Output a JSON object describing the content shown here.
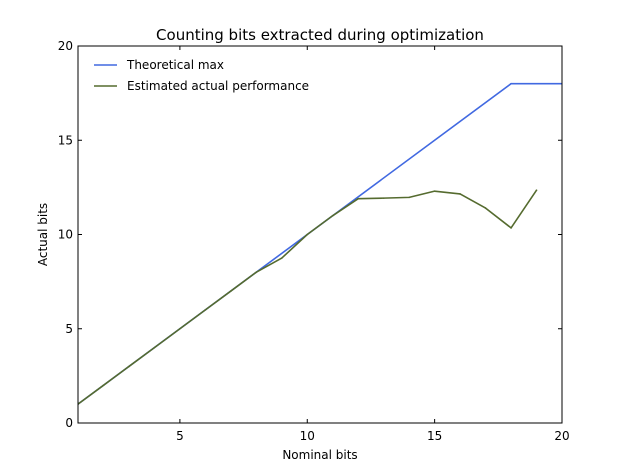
{
  "chart_data": {
    "type": "line",
    "title": "Counting bits extracted during optimization",
    "xlabel": "Nominal bits",
    "ylabel": "Actual bits",
    "xlim": [
      1,
      20
    ],
    "ylim": [
      0,
      20
    ],
    "x_ticks": [
      5,
      10,
      15,
      20
    ],
    "x_tick_labels": [
      "5",
      "10",
      "15",
      "20"
    ],
    "y_ticks": [
      0,
      5,
      10,
      15,
      20
    ],
    "y_tick_labels": [
      "0",
      "5",
      "10",
      "15",
      "20"
    ],
    "grid": false,
    "legend_position": "top-left",
    "series": [
      {
        "name": "Theoretical max",
        "color": "#4169e1",
        "x": [
          1,
          18,
          20
        ],
        "values": [
          1,
          18,
          18
        ]
      },
      {
        "name": "Estimated actual performance",
        "color": "#556b2f",
        "x": [
          1,
          2,
          3,
          4,
          5,
          6,
          7,
          8,
          9,
          10,
          11,
          12,
          13,
          14,
          15,
          16,
          17,
          18,
          19
        ],
        "values": [
          1,
          2,
          3,
          4,
          5,
          6,
          7,
          8,
          8.75,
          10,
          11,
          11.9,
          11.93,
          11.97,
          12.3,
          12.15,
          11.4,
          10.35,
          12.35
        ]
      }
    ]
  }
}
